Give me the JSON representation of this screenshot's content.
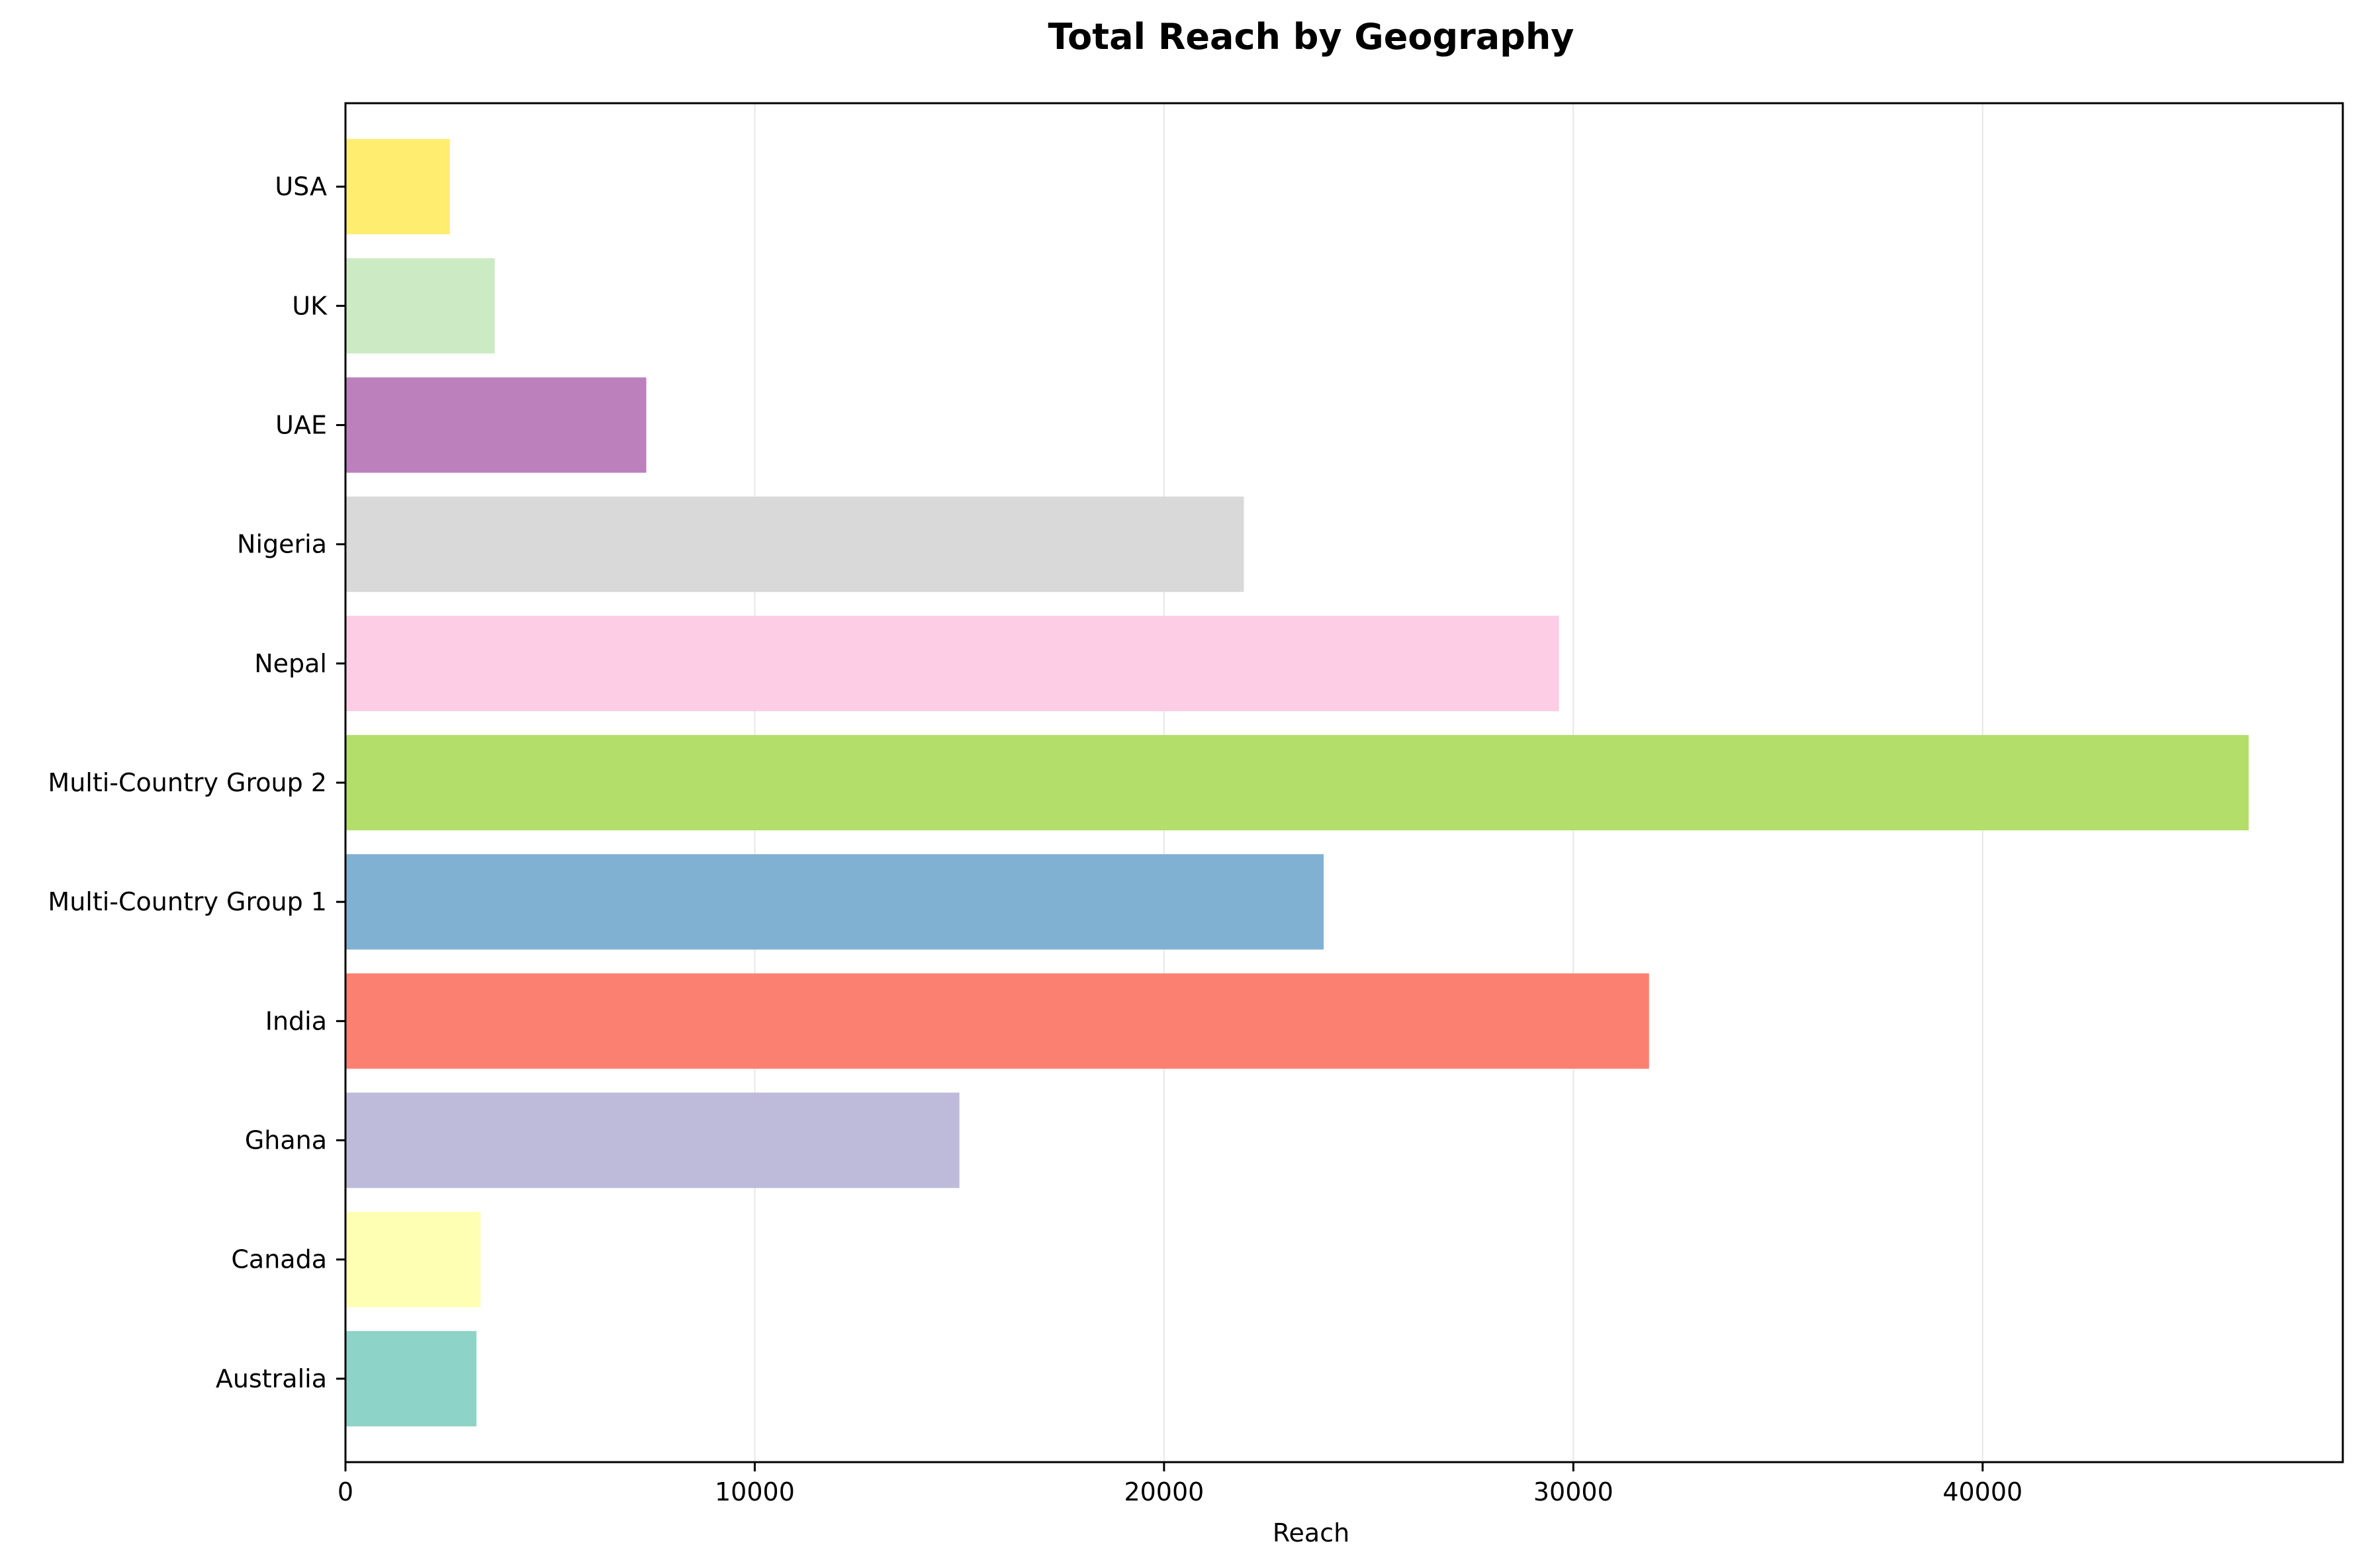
{
  "chart_data": {
    "type": "bar",
    "orientation": "horizontal",
    "title": "Total Reach by Geography",
    "xlabel": "Reach",
    "ylabel": "",
    "xlim": [
      0,
      48800
    ],
    "xticks": [
      0,
      10000,
      20000,
      30000,
      40000
    ],
    "grid": "x",
    "categories": [
      "Australia",
      "Canada",
      "Ghana",
      "India",
      "Multi-Country Group 1",
      "Multi-Country Group 2",
      "Nepal",
      "Nigeria",
      "UAE",
      "UK",
      "USA"
    ],
    "values": [
      3200,
      3300,
      15000,
      31850,
      23900,
      46500,
      29650,
      21950,
      7350,
      3650,
      2550
    ],
    "colors": [
      "#8dd3c7",
      "#ffffb3",
      "#bebada",
      "#fb8072",
      "#80b1d3",
      "#b3de69",
      "#fccde5",
      "#d9d9d9",
      "#bc80bd",
      "#ccebc5",
      "#ffed6f"
    ]
  }
}
